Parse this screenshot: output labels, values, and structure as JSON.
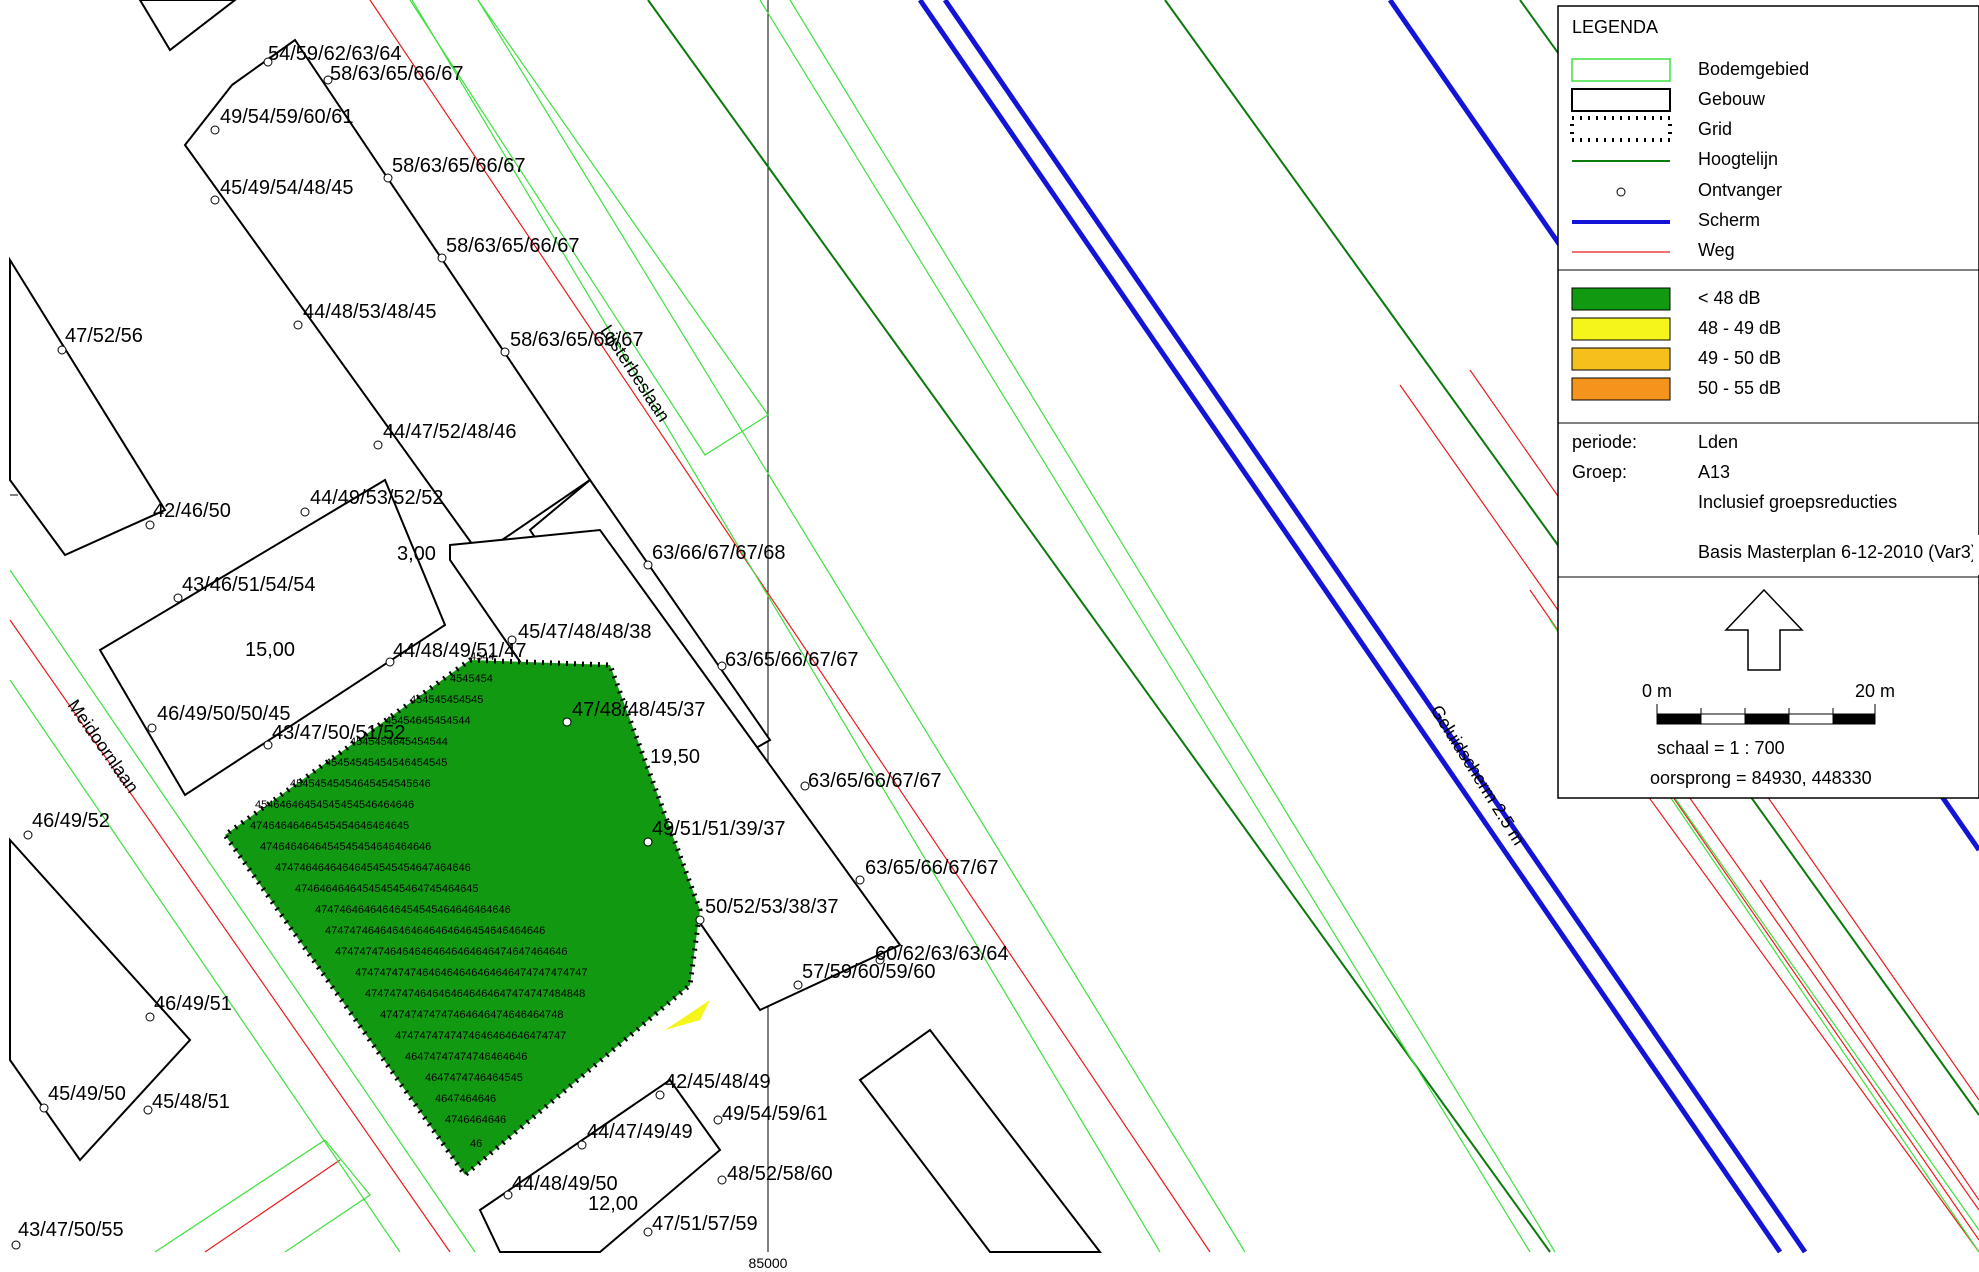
{
  "legend": {
    "title": "LEGENDA",
    "items": [
      {
        "label": "Bodemgebied",
        "symbol": "bodemgebied",
        "color": "#3ee03e"
      },
      {
        "label": "Gebouw",
        "symbol": "gebouw",
        "color": "#000000"
      },
      {
        "label": "Grid",
        "symbol": "grid",
        "color": "#000000"
      },
      {
        "label": "Hoogtelijn",
        "symbol": "hoogtelijn",
        "color": "#0a7a0a"
      },
      {
        "label": "Ontvanger",
        "symbol": "ontvanger",
        "color": "#000000"
      },
      {
        "label": "Scherm",
        "symbol": "scherm",
        "color": "#1414d8"
      },
      {
        "label": "Weg",
        "symbol": "weg",
        "color": "#e81c1c"
      }
    ],
    "classes": [
      {
        "label": "< 48 dB",
        "color": "#119a11"
      },
      {
        "label": "48 - 49 dB",
        "color": "#f5f51c"
      },
      {
        "label": "49 - 50 dB",
        "color": "#f5c01c"
      },
      {
        "label": "50 - 55 dB",
        "color": "#f5941c"
      }
    ],
    "info": {
      "periode_label": "periode:",
      "periode_value": "Lden",
      "groep_label": "Groep:",
      "groep_value": "A13",
      "line1": "Inclusief groepsreducties",
      "line2": "Basis Masterplan 6-12-2010 (Var3)"
    },
    "north_icon": "north-arrow-icon",
    "scale_start": "0 m",
    "scale_end": "20 m",
    "scale_text": "schaal = 1 : 700",
    "origin_text": "oorsprong = 84930, 448330"
  },
  "axis": {
    "x_label": "85000"
  },
  "streets": [
    "Meidoornlaan",
    "Lijsterbeslaan",
    "Geluidscherm 2.5 m"
  ],
  "heights": [
    "3,00",
    "15,00",
    "19,50",
    "12,00"
  ],
  "receivers": [
    "54/59/62/63/64",
    "58/63/65/66/67",
    "49/54/59/60/61",
    "58/63/65/66/67",
    "45/49/54/48/45",
    "58/63/65/66/67",
    "44/48/53/48/45",
    "58/63/65/66/67",
    "47/52/56",
    "44/47/52/48/46",
    "42/46/50",
    "44/49/53/52/52",
    "43/46/51/54/54",
    "63/66/67/67/68",
    "45/47/48/48/38",
    "44/48/49/51/47",
    "63/65/66/67/67",
    "47/48/48/45/37",
    "46/49/50/50/45",
    "43/47/50/51/52",
    "63/65/66/67/67",
    "49/51/51/39/37",
    "46/49/52",
    "63/65/66/67/67",
    "50/52/53/38/37",
    "60/62/63/63/64",
    "57/59/60/59/60",
    "46/49/51",
    "42/45/48/49",
    "45/49/50",
    "45/48/51",
    "49/54/59/61",
    "44/47/49/49",
    "48/52/58/60",
    "44/48/49/50",
    "47/51/57/59",
    "43/47/50/55"
  ],
  "grid_rows": [
    "4544",
    "4545454",
    "454545454545",
    "45454645454544",
    "4545454645454544",
    "45454545454546454545",
    "45454545454645454545646",
    "45464646454545454546464646",
    "47464646464545454646464645",
    "4746464646454545454646464646",
    "47474646464646454545454647464646",
    "474646464645454545464745464645",
    "47474646464646454545464646464646",
    "474747464646464646464646454646464646",
    "47474747464646464646464646474647464646",
    "47474747474646464646464646474747474747",
    "474747474646464646464647474747484848",
    "474747474747464646474646464748",
    "4747474747474646464646474747",
    "46474747474746464646",
    "4647474746464545",
    "4647464646",
    "4746464646",
    "46"
  ]
}
